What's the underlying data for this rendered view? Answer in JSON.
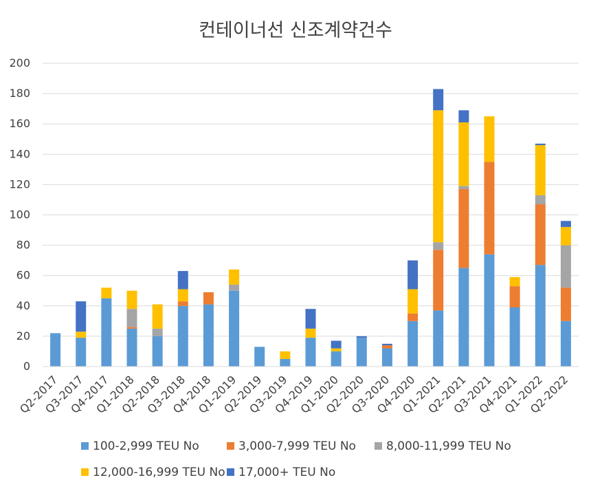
{
  "chart_data": {
    "type": "bar",
    "stacked": true,
    "title": "컨테이너선 신조계약건수",
    "xlabel": "",
    "ylabel": "",
    "ylim": [
      0,
      200
    ],
    "yticks": [
      0,
      20,
      40,
      60,
      80,
      100,
      120,
      140,
      160,
      180,
      200
    ],
    "grid": true,
    "legend_position": "bottom",
    "categories": [
      "Q2-2017",
      "Q3-2017",
      "Q4-2017",
      "Q1-2018",
      "Q2-2018",
      "Q3-2018",
      "Q4-2018",
      "Q1-2019",
      "Q2-2019",
      "Q3-2019",
      "Q4-2019",
      "Q1-2020",
      "Q2-2020",
      "Q3-2020",
      "Q4-2020",
      "Q1-2021",
      "Q2-2021",
      "Q3-2021",
      "Q4-2021",
      "Q1-2022",
      "Q2-2022"
    ],
    "series": [
      {
        "name": "100-2,999 TEU No",
        "color": "#5B9BD5",
        "values": [
          22,
          19,
          45,
          25,
          20,
          40,
          41,
          50,
          13,
          5,
          19,
          10,
          19,
          12,
          30,
          37,
          65,
          74,
          39,
          67,
          30
        ]
      },
      {
        "name": "3,000-7,999 TEU No",
        "color": "#ED7D31",
        "values": [
          0,
          0,
          0,
          1,
          0,
          3,
          8,
          0,
          0,
          0,
          0,
          0,
          0,
          2,
          5,
          40,
          52,
          61,
          14,
          40,
          22
        ]
      },
      {
        "name": "8,000-11,999 TEU No",
        "color": "#A5A5A5",
        "values": [
          0,
          0,
          0,
          12,
          5,
          0,
          0,
          4,
          0,
          0,
          0,
          0,
          0,
          0,
          0,
          5,
          2,
          0,
          0,
          6,
          28
        ]
      },
      {
        "name": "12,000-16,999 TEU No",
        "color": "#FFC000",
        "values": [
          0,
          4,
          7,
          12,
          16,
          8,
          0,
          10,
          0,
          5,
          6,
          2,
          0,
          0,
          16,
          87,
          42,
          30,
          6,
          33,
          12
        ]
      },
      {
        "name": "17,000+ TEU No",
        "color": "#4472C4",
        "values": [
          0,
          20,
          0,
          0,
          0,
          12,
          0,
          0,
          0,
          0,
          13,
          5,
          1,
          1,
          19,
          14,
          8,
          0,
          0,
          1,
          4
        ]
      }
    ]
  }
}
